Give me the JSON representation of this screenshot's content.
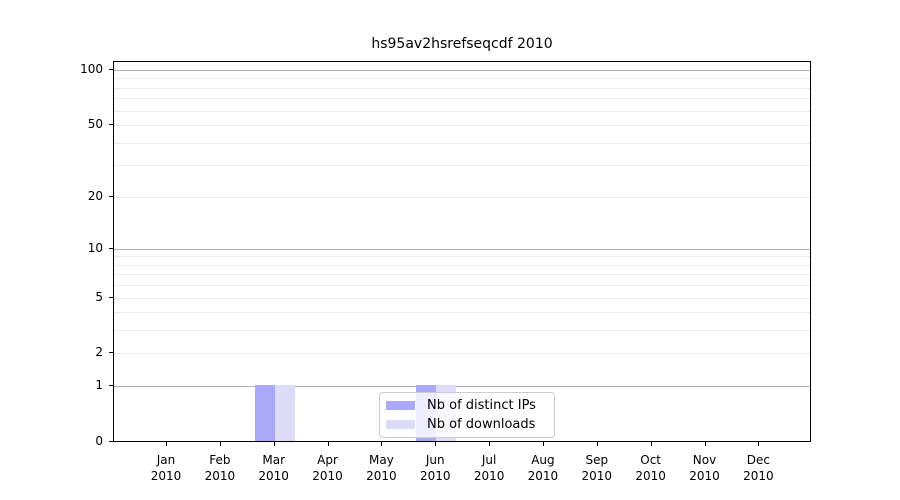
{
  "chart_data": {
    "type": "bar",
    "title": "hs95av2hsrefseqcdf 2010",
    "year_label": "2010",
    "categories": [
      "Jan",
      "Feb",
      "Mar",
      "Apr",
      "May",
      "Jun",
      "Jul",
      "Aug",
      "Sep",
      "Oct",
      "Nov",
      "Dec"
    ],
    "series": [
      {
        "name": "Nb of distinct IPs",
        "color": "#a9a9f8",
        "values": [
          0,
          0,
          1,
          0,
          0,
          1,
          0,
          0,
          0,
          0,
          0,
          0
        ]
      },
      {
        "name": "Nb of downloads",
        "color": "#dcdcf8",
        "values": [
          0,
          0,
          1,
          0,
          0,
          1,
          0,
          0,
          0,
          0,
          0,
          0
        ]
      }
    ],
    "yscale": "log1p",
    "ylim": [
      0,
      112
    ],
    "yticks": [
      0,
      1,
      2,
      5,
      10,
      20,
      50,
      100
    ],
    "major_gridlines": [
      1,
      10,
      100
    ],
    "minor_gridlines": [
      2,
      3,
      4,
      5,
      6,
      7,
      8,
      9,
      20,
      30,
      40,
      50,
      60,
      70,
      80,
      90
    ],
    "grid": true,
    "legend_position": "lower center",
    "xlabel": "",
    "ylabel": ""
  },
  "colors": {
    "axis": "#000000",
    "major_grid": "#b3b3b3",
    "minor_grid": "#ececec",
    "background": "#ffffff"
  }
}
